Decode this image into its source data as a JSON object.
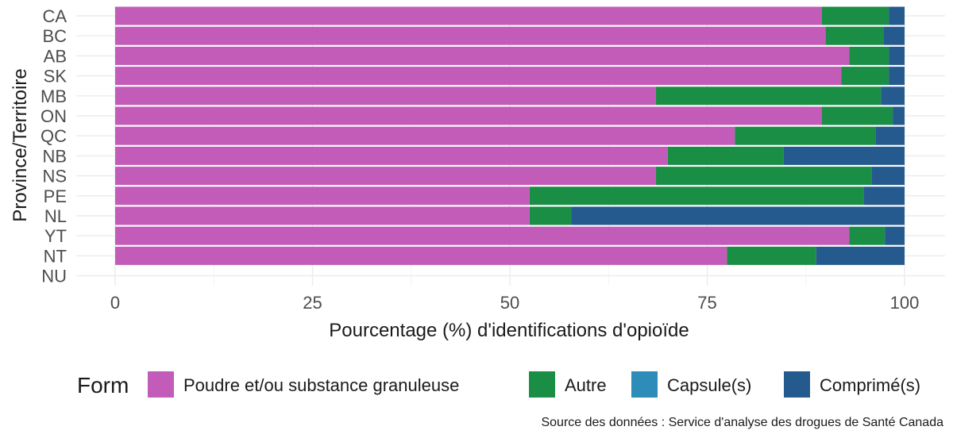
{
  "chart_data": {
    "type": "bar",
    "orientation": "horizontal",
    "stacked": true,
    "categories": [
      "CA",
      "BC",
      "AB",
      "SK",
      "MB",
      "ON",
      "QC",
      "NB",
      "NS",
      "PE",
      "NL",
      "YT",
      "NT",
      "NU"
    ],
    "series": [
      {
        "name": "Poudre et/ou substance granuleuse",
        "color": "#c35bb9",
        "values": [
          89.5,
          90,
          93,
          92,
          68.5,
          89.5,
          78.5,
          70,
          68.5,
          52.5,
          52.5,
          93,
          77.5,
          0
        ]
      },
      {
        "name": "Autre",
        "color": "#1b8e45",
        "values": [
          8.5,
          7.3,
          5,
          6,
          28.5,
          9,
          17.8,
          14.7,
          27.3,
          42.3,
          5.3,
          4.5,
          11.3,
          0
        ]
      },
      {
        "name": "Capsule(s)",
        "color": "#2e8cb8",
        "values": [
          0,
          0,
          0,
          0,
          0,
          0,
          0,
          0,
          0,
          0,
          0,
          0,
          0,
          0
        ]
      },
      {
        "name": "Comprimé(s)",
        "color": "#255a8f",
        "values": [
          2,
          2.7,
          2,
          2,
          3,
          1.5,
          3.7,
          15.3,
          4.2,
          5.2,
          42.2,
          2.5,
          11.2,
          0
        ]
      }
    ],
    "xlim": [
      0,
      100
    ],
    "xticks": [
      0,
      25,
      50,
      75,
      100
    ],
    "xlabel": "Pourcentage (%) d'identifications d'opioïde",
    "ylabel": "Province/Territoire",
    "legend_title": "Form",
    "legend_position": "bottom",
    "grid": true,
    "caption": "Source des données : Service d'analyse des drogues de Santé Canada"
  }
}
